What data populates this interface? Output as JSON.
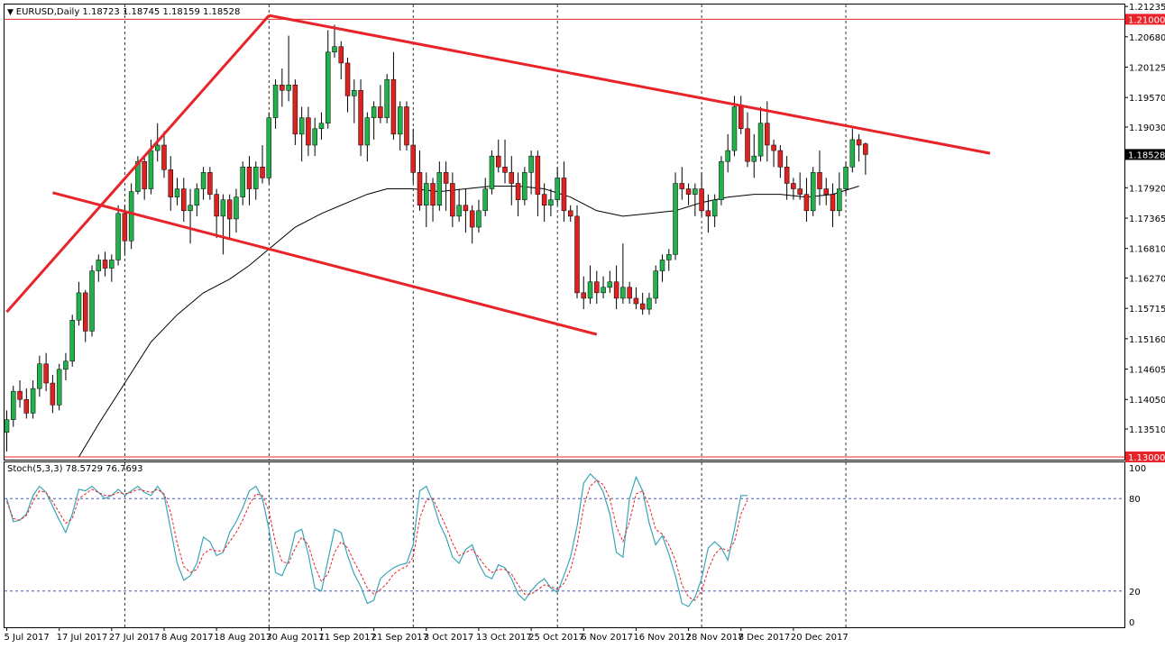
{
  "colors": {
    "background": "#ffffff",
    "bull_candle": "#22b14c",
    "bear_candle": "#dd2222",
    "wick": "#000000",
    "trendline": "#e8232a",
    "hline": "#e8232a",
    "ma_line": "#000000",
    "stoch_main": "#3aa6b9",
    "stoch_signal": "#e8232a",
    "stoch_levels": "#2c3fa8",
    "grid": "#000000"
  },
  "chart_data": [
    {
      "type": "candlestick",
      "symbol_header": "EURUSD,Daily  1.18723 1.18745 1.18159 1.18528",
      "y_ticks": [
        "1.21235",
        "1.20680",
        "1.20125",
        "1.19570",
        "1.19030",
        "1.18528",
        "1.17920",
        "1.17365",
        "1.16810",
        "1.16270",
        "1.15715",
        "1.15160",
        "1.14605",
        "1.14050",
        "1.13510"
      ],
      "ylim": [
        1.1295,
        1.2127
      ],
      "x_ticks": [
        "5 Jul 2017",
        "17 Jul 2017",
        "27 Jul 2017",
        "8 Aug 2017",
        "18 Aug 2017",
        "30 Aug 2017",
        "11 Sep 2017",
        "21 Sep 2017",
        "3 Oct 2017",
        "13 Oct 2017",
        "25 Oct 2017",
        "6 Nov 2017",
        "16 Nov 2017",
        "28 Nov 2017",
        "8 Dec 2017",
        "20 Dec 2017"
      ],
      "x_tick_bars": [
        0,
        8,
        16,
        24,
        32,
        40,
        48,
        56,
        64,
        72,
        80,
        88,
        96,
        104,
        112,
        120
      ],
      "vertical_grid_bars": [
        18,
        40,
        62,
        84,
        106,
        128
      ],
      "ohlc": [
        [
          1.1345,
          1.1385,
          1.131,
          1.1368
        ],
        [
          1.1368,
          1.143,
          1.1355,
          1.142
        ],
        [
          1.142,
          1.144,
          1.139,
          1.1405
        ],
        [
          1.1405,
          1.1425,
          1.137,
          1.138
        ],
        [
          1.138,
          1.144,
          1.137,
          1.1425
        ],
        [
          1.1425,
          1.1485,
          1.141,
          1.147
        ],
        [
          1.147,
          1.149,
          1.142,
          1.1435
        ],
        [
          1.1435,
          1.145,
          1.138,
          1.1395
        ],
        [
          1.1395,
          1.147,
          1.1385,
          1.146
        ],
        [
          1.146,
          1.149,
          1.144,
          1.1475
        ],
        [
          1.1475,
          1.156,
          1.1465,
          1.155
        ],
        [
          1.155,
          1.162,
          1.154,
          1.16
        ],
        [
          1.16,
          1.1605,
          1.151,
          1.153
        ],
        [
          1.153,
          1.165,
          1.152,
          1.164
        ],
        [
          1.164,
          1.167,
          1.162,
          1.166
        ],
        [
          1.166,
          1.1675,
          1.163,
          1.1645
        ],
        [
          1.1645,
          1.167,
          1.162,
          1.166
        ],
        [
          1.166,
          1.176,
          1.165,
          1.1745
        ],
        [
          1.1745,
          1.176,
          1.167,
          1.1695
        ],
        [
          1.1695,
          1.18,
          1.168,
          1.1785
        ],
        [
          1.1785,
          1.185,
          1.178,
          1.184
        ],
        [
          1.184,
          1.185,
          1.177,
          1.179
        ],
        [
          1.179,
          1.188,
          1.178,
          1.186
        ],
        [
          1.186,
          1.191,
          1.184,
          1.187
        ],
        [
          1.187,
          1.1895,
          1.181,
          1.1825
        ],
        [
          1.1825,
          1.185,
          1.175,
          1.1775
        ],
        [
          1.1775,
          1.181,
          1.176,
          1.179
        ],
        [
          1.179,
          1.181,
          1.173,
          1.175
        ],
        [
          1.175,
          1.179,
          1.169,
          1.176
        ],
        [
          1.176,
          1.18,
          1.174,
          1.179
        ],
        [
          1.179,
          1.183,
          1.177,
          1.182
        ],
        [
          1.182,
          1.183,
          1.177,
          1.178
        ],
        [
          1.178,
          1.179,
          1.17,
          1.174
        ],
        [
          1.174,
          1.178,
          1.167,
          1.177
        ],
        [
          1.177,
          1.178,
          1.17,
          1.1735
        ],
        [
          1.1735,
          1.179,
          1.171,
          1.1775
        ],
        [
          1.1775,
          1.184,
          1.176,
          1.183
        ],
        [
          1.183,
          1.185,
          1.176,
          1.179
        ],
        [
          1.179,
          1.184,
          1.177,
          1.183
        ],
        [
          1.183,
          1.187,
          1.18,
          1.181
        ],
        [
          1.181,
          1.193,
          1.18,
          1.192
        ],
        [
          1.192,
          1.199,
          1.19,
          1.198
        ],
        [
          1.198,
          1.201,
          1.194,
          1.197
        ],
        [
          1.197,
          1.207,
          1.195,
          1.198
        ],
        [
          1.198,
          1.199,
          1.187,
          1.189
        ],
        [
          1.189,
          1.194,
          1.184,
          1.192
        ],
        [
          1.192,
          1.194,
          1.185,
          1.187
        ],
        [
          1.187,
          1.192,
          1.185,
          1.19
        ],
        [
          1.19,
          1.193,
          1.188,
          1.191
        ],
        [
          1.191,
          1.208,
          1.19,
          1.204
        ],
        [
          1.204,
          1.209,
          1.203,
          1.205
        ],
        [
          1.205,
          1.206,
          1.199,
          1.202
        ],
        [
          1.202,
          1.203,
          1.193,
          1.196
        ],
        [
          1.196,
          1.199,
          1.191,
          1.197
        ],
        [
          1.197,
          1.199,
          1.185,
          1.187
        ],
        [
          1.187,
          1.193,
          1.184,
          1.192
        ],
        [
          1.192,
          1.195,
          1.188,
          1.194
        ],
        [
          1.194,
          1.198,
          1.191,
          1.192
        ],
        [
          1.192,
          1.2,
          1.191,
          1.199
        ],
        [
          1.199,
          1.204,
          1.188,
          1.189
        ],
        [
          1.189,
          1.195,
          1.186,
          1.194
        ],
        [
          1.194,
          1.195,
          1.186,
          1.187
        ],
        [
          1.187,
          1.19,
          1.18,
          1.182
        ],
        [
          1.182,
          1.186,
          1.175,
          1.176
        ],
        [
          1.176,
          1.182,
          1.172,
          1.18
        ],
        [
          1.18,
          1.181,
          1.173,
          1.176
        ],
        [
          1.176,
          1.184,
          1.175,
          1.182
        ],
        [
          1.182,
          1.184,
          1.175,
          1.18
        ],
        [
          1.18,
          1.182,
          1.172,
          1.174
        ],
        [
          1.174,
          1.179,
          1.173,
          1.176
        ],
        [
          1.176,
          1.179,
          1.171,
          1.175
        ],
        [
          1.175,
          1.176,
          1.169,
          1.172
        ],
        [
          1.172,
          1.177,
          1.171,
          1.175
        ],
        [
          1.175,
          1.181,
          1.174,
          1.179
        ],
        [
          1.179,
          1.186,
          1.178,
          1.185
        ],
        [
          1.185,
          1.188,
          1.182,
          1.183
        ],
        [
          1.183,
          1.188,
          1.18,
          1.182
        ],
        [
          1.182,
          1.185,
          1.176,
          1.18
        ],
        [
          1.18,
          1.182,
          1.174,
          1.177
        ],
        [
          1.177,
          1.183,
          1.176,
          1.182
        ],
        [
          1.182,
          1.186,
          1.178,
          1.185
        ],
        [
          1.185,
          1.186,
          1.174,
          1.178
        ],
        [
          1.178,
          1.18,
          1.173,
          1.176
        ],
        [
          1.176,
          1.179,
          1.174,
          1.177
        ],
        [
          1.177,
          1.183,
          1.176,
          1.181
        ],
        [
          1.181,
          1.184,
          1.173,
          1.175
        ],
        [
          1.175,
          1.176,
          1.173,
          1.174
        ],
        [
          1.174,
          1.176,
          1.159,
          1.16
        ],
        [
          1.16,
          1.163,
          1.157,
          1.159
        ],
        [
          1.159,
          1.165,
          1.158,
          1.162
        ],
        [
          1.162,
          1.164,
          1.158,
          1.16
        ],
        [
          1.16,
          1.163,
          1.159,
          1.161
        ],
        [
          1.161,
          1.164,
          1.16,
          1.162
        ],
        [
          1.162,
          1.165,
          1.157,
          1.159
        ],
        [
          1.159,
          1.169,
          1.158,
          1.161
        ],
        [
          1.161,
          1.162,
          1.158,
          1.159
        ],
        [
          1.159,
          1.161,
          1.157,
          1.158
        ],
        [
          1.158,
          1.16,
          1.156,
          1.157
        ],
        [
          1.157,
          1.16,
          1.156,
          1.159
        ],
        [
          1.159,
          1.165,
          1.158,
          1.164
        ],
        [
          1.164,
          1.167,
          1.162,
          1.166
        ],
        [
          1.166,
          1.168,
          1.164,
          1.167
        ],
        [
          1.167,
          1.182,
          1.166,
          1.18
        ],
        [
          1.18,
          1.183,
          1.177,
          1.179
        ],
        [
          1.179,
          1.18,
          1.176,
          1.178
        ],
        [
          1.178,
          1.18,
          1.174,
          1.179
        ],
        [
          1.179,
          1.182,
          1.174,
          1.175
        ],
        [
          1.175,
          1.178,
          1.171,
          1.174
        ],
        [
          1.174,
          1.178,
          1.172,
          1.177
        ],
        [
          1.177,
          1.185,
          1.176,
          1.184
        ],
        [
          1.184,
          1.189,
          1.182,
          1.186
        ],
        [
          1.186,
          1.196,
          1.185,
          1.194
        ],
        [
          1.194,
          1.196,
          1.189,
          1.19
        ],
        [
          1.19,
          1.193,
          1.183,
          1.184
        ],
        [
          1.184,
          1.189,
          1.181,
          1.185
        ],
        [
          1.185,
          1.194,
          1.184,
          1.191
        ],
        [
          1.191,
          1.195,
          1.184,
          1.187
        ],
        [
          1.187,
          1.188,
          1.183,
          1.186
        ],
        [
          1.186,
          1.187,
          1.181,
          1.183
        ],
        [
          1.183,
          1.185,
          1.177,
          1.18
        ],
        [
          1.18,
          1.181,
          1.177,
          1.179
        ],
        [
          1.179,
          1.182,
          1.177,
          1.178
        ],
        [
          1.178,
          1.181,
          1.173,
          1.175
        ],
        [
          1.175,
          1.183,
          1.174,
          1.182
        ],
        [
          1.182,
          1.186,
          1.176,
          1.179
        ],
        [
          1.179,
          1.181,
          1.176,
          1.178
        ],
        [
          1.178,
          1.18,
          1.172,
          1.175
        ],
        [
          1.175,
          1.182,
          1.174,
          1.179
        ],
        [
          1.179,
          1.184,
          1.178,
          1.183
        ],
        [
          1.183,
          1.19,
          1.182,
          1.188
        ],
        [
          1.188,
          1.189,
          1.184,
          1.187
        ],
        [
          1.18723,
          1.18745,
          1.18159,
          1.18528
        ]
      ],
      "moving_average": [
        [
          11,
          1.13
        ],
        [
          14,
          1.136
        ],
        [
          18,
          1.1435
        ],
        [
          22,
          1.151
        ],
        [
          26,
          1.156
        ],
        [
          30,
          1.16
        ],
        [
          34,
          1.1625
        ],
        [
          37,
          1.165
        ],
        [
          40,
          1.168
        ],
        [
          44,
          1.172
        ],
        [
          48,
          1.1745
        ],
        [
          52,
          1.1765
        ],
        [
          55,
          1.178
        ],
        [
          58,
          1.179
        ],
        [
          62,
          1.179
        ],
        [
          66,
          1.1785
        ],
        [
          70,
          1.179
        ],
        [
          74,
          1.1795
        ],
        [
          78,
          1.1795
        ],
        [
          82,
          1.179
        ],
        [
          86,
          1.1775
        ],
        [
          90,
          1.175
        ],
        [
          94,
          1.174
        ],
        [
          98,
          1.1745
        ],
        [
          102,
          1.175
        ],
        [
          106,
          1.1765
        ],
        [
          110,
          1.1775
        ],
        [
          114,
          1.178
        ],
        [
          118,
          1.178
        ],
        [
          122,
          1.1775
        ],
        [
          126,
          1.178
        ],
        [
          130,
          1.1795
        ]
      ],
      "trendlines": [
        {
          "from": [
            0,
            1.1565
          ],
          "to": [
            40,
            1.2107
          ]
        },
        {
          "from": [
            7,
            1.1783
          ],
          "to": [
            90,
            1.1524
          ]
        },
        {
          "from": [
            40,
            1.2107
          ],
          "to": [
            150,
            1.1855
          ]
        }
      ],
      "horizontal_lines": [
        {
          "value": 1.21,
          "label": "1.21000"
        },
        {
          "value": 1.13,
          "label": "1.13000"
        }
      ],
      "current_price_label": "1.18528",
      "current_price": 1.18528
    },
    {
      "type": "line",
      "title": "Stoch(5,3,3) 78.5729 76.7693",
      "ylim": [
        0,
        100
      ],
      "y_ticks": [
        "100",
        "80",
        "20",
        "0"
      ],
      "levels": [
        80,
        20
      ],
      "series": [
        {
          "values": [
            80,
            65,
            66,
            70,
            82,
            88,
            84,
            75,
            66,
            58,
            70,
            86,
            85,
            88,
            84,
            80,
            82,
            86,
            82,
            85,
            88,
            84,
            82,
            88,
            82,
            60,
            38,
            27,
            30,
            38,
            55,
            52,
            43,
            45,
            58,
            65,
            74,
            85,
            88,
            80,
            60,
            32,
            30,
            40,
            58,
            60,
            44,
            22,
            20,
            40,
            60,
            58,
            43,
            31,
            23,
            12,
            14,
            28,
            32,
            35,
            37,
            38,
            50,
            85,
            88,
            78,
            64,
            55,
            42,
            38,
            47,
            50,
            38,
            30,
            28,
            37,
            35,
            28,
            18,
            14,
            20,
            25,
            28,
            22,
            19,
            30,
            42,
            62,
            90,
            96,
            92,
            84,
            70,
            45,
            42,
            80,
            94,
            85,
            64,
            50,
            56,
            44,
            30,
            12,
            10,
            16,
            28,
            48,
            52,
            48,
            40,
            60,
            82,
            82
          ]
        },
        {
          "values": [
            78,
            67,
            66,
            69,
            78,
            85,
            84,
            78,
            71,
            64,
            67,
            80,
            83,
            86,
            84,
            82,
            82,
            84,
            83,
            84,
            86,
            85,
            84,
            86,
            83,
            71,
            51,
            36,
            32,
            34,
            44,
            47,
            46,
            46,
            52,
            58,
            66,
            76,
            83,
            82,
            72,
            51,
            39,
            38,
            48,
            55,
            50,
            36,
            26,
            31,
            45,
            52,
            48,
            39,
            31,
            22,
            18,
            21,
            25,
            31,
            34,
            36,
            42,
            67,
            79,
            80,
            71,
            62,
            51,
            43,
            45,
            47,
            42,
            36,
            32,
            34,
            34,
            31,
            24,
            18,
            18,
            21,
            24,
            23,
            21,
            25,
            34,
            50,
            75,
            88,
            92,
            89,
            80,
            62,
            52,
            65,
            83,
            85,
            75,
            60,
            57,
            50,
            40,
            24,
            16,
            14,
            20,
            34,
            44,
            48,
            46,
            52,
            70,
            79
          ]
        }
      ]
    }
  ]
}
